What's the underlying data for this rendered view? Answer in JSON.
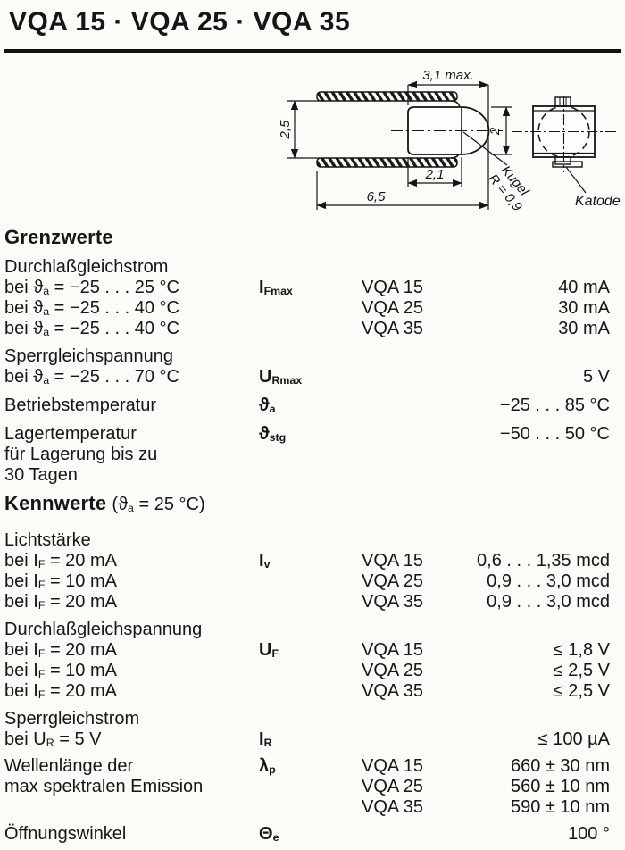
{
  "page": {
    "title": "VQA 15 · VQA 25 · VQA 35"
  },
  "diagram": {
    "dim_width_max": "3,1 max.",
    "dim_lead_spacing": "2,5",
    "dim_dome_height": "2",
    "dim_body_width": "2,1",
    "dim_total_length": "6,5",
    "sphere_line1": "Kugel",
    "sphere_line2": "R = 0,9",
    "cathode_label": "Katode"
  },
  "table": {
    "sections": [
      {
        "heading": "Grenzwerte",
        "suffix": "",
        "groups": [
          {
            "rows": [
              {
                "label": "Durchlaßgleichstrom",
                "symbol": "",
                "type": "",
                "value": ""
              },
              {
                "label": "bei ϑ_{a} = −25 . . . 25 °C",
                "symbol": "I_{Fmax}",
                "type": "VQA 15",
                "value": "40 mA"
              },
              {
                "label": "bei ϑ_{a} = −25 . . . 40 °C",
                "symbol": "",
                "type": "VQA 25",
                "value": "30 mA"
              },
              {
                "label": "bei ϑ_{a} = −25 . . . 40 °C",
                "symbol": "",
                "type": "VQA 35",
                "value": "30 mA"
              }
            ]
          },
          {
            "rows": [
              {
                "label": "Sperrgleichspannung",
                "symbol": "",
                "type": "",
                "value": ""
              },
              {
                "label": "bei ϑ_{a} = −25 . . . 70 °C",
                "symbol": "U_{Rmax}",
                "type": "",
                "value": "5 V"
              }
            ]
          },
          {
            "rows": [
              {
                "label": "Betriebstemperatur",
                "symbol": "ϑ_{a}",
                "type": "",
                "value": "−25 . . . 85 °C"
              }
            ]
          },
          {
            "rows": [
              {
                "label": "Lagertemperatur",
                "symbol": "ϑ_{stg}",
                "type": "",
                "value": "−50 . . . 50 °C"
              },
              {
                "label": "für Lagerung bis zu",
                "symbol": "",
                "type": "",
                "value": ""
              },
              {
                "label": "30 Tagen",
                "symbol": "",
                "type": "",
                "value": ""
              }
            ]
          }
        ]
      },
      {
        "heading": "Kennwerte",
        "suffix": "(ϑ_{a} = 25 °C)",
        "groups": [
          {
            "rows": [
              {
                "label": "Lichtstärke",
                "symbol": "",
                "type": "",
                "value": ""
              },
              {
                "label": "bei I_{F} = 20 mA",
                "symbol": "I_{v}",
                "type": "VQA 15",
                "value": "0,6 . . . 1,35 mcd"
              },
              {
                "label": "bei I_{F} = 10 mA",
                "symbol": "",
                "type": "VQA 25",
                "value": "0,9 . . . 3,0 mcd"
              },
              {
                "label": "bei I_{F} = 20 mA",
                "symbol": "",
                "type": "VQA 35",
                "value": "0,9 . . . 3,0 mcd"
              }
            ]
          },
          {
            "rows": [
              {
                "label": "Durchlaßgleichspannung",
                "symbol": "",
                "type": "",
                "value": ""
              },
              {
                "label": "bei I_{F} = 20 mA",
                "symbol": "U_{F}",
                "type": "VQA 15",
                "value": "≤ 1,8 V"
              },
              {
                "label": "bei I_{F} = 10 mA",
                "symbol": "",
                "type": "VQA 25",
                "value": "≤ 2,5 V"
              },
              {
                "label": "bei I_{F} = 20 mA",
                "symbol": "",
                "type": "VQA 35",
                "value": "≤ 2,5 V"
              }
            ]
          },
          {
            "rows": [
              {
                "label": "Sperrgleichstrom",
                "symbol": "",
                "type": "",
                "value": ""
              },
              {
                "label": "bei U_{R} = 5 V",
                "symbol": "I_{R}",
                "type": "",
                "value": "≤ 100 µA"
              }
            ]
          },
          {
            "rows": [
              {
                "label": "Wellenlänge der",
                "symbol": "λ_{p}",
                "type": "VQA 15",
                "value": "660 ± 30 nm"
              },
              {
                "label": "max spektralen Emission",
                "symbol": "",
                "type": "VQA 25",
                "value": "560 ± 10 nm"
              },
              {
                "label": "",
                "symbol": "",
                "type": "VQA 35",
                "value": "590 ± 10 nm"
              }
            ]
          },
          {
            "rows": [
              {
                "label": "Öffnungswinkel",
                "symbol": "Θ_{e}",
                "type": "",
                "value": "100 °"
              }
            ]
          }
        ]
      }
    ]
  }
}
